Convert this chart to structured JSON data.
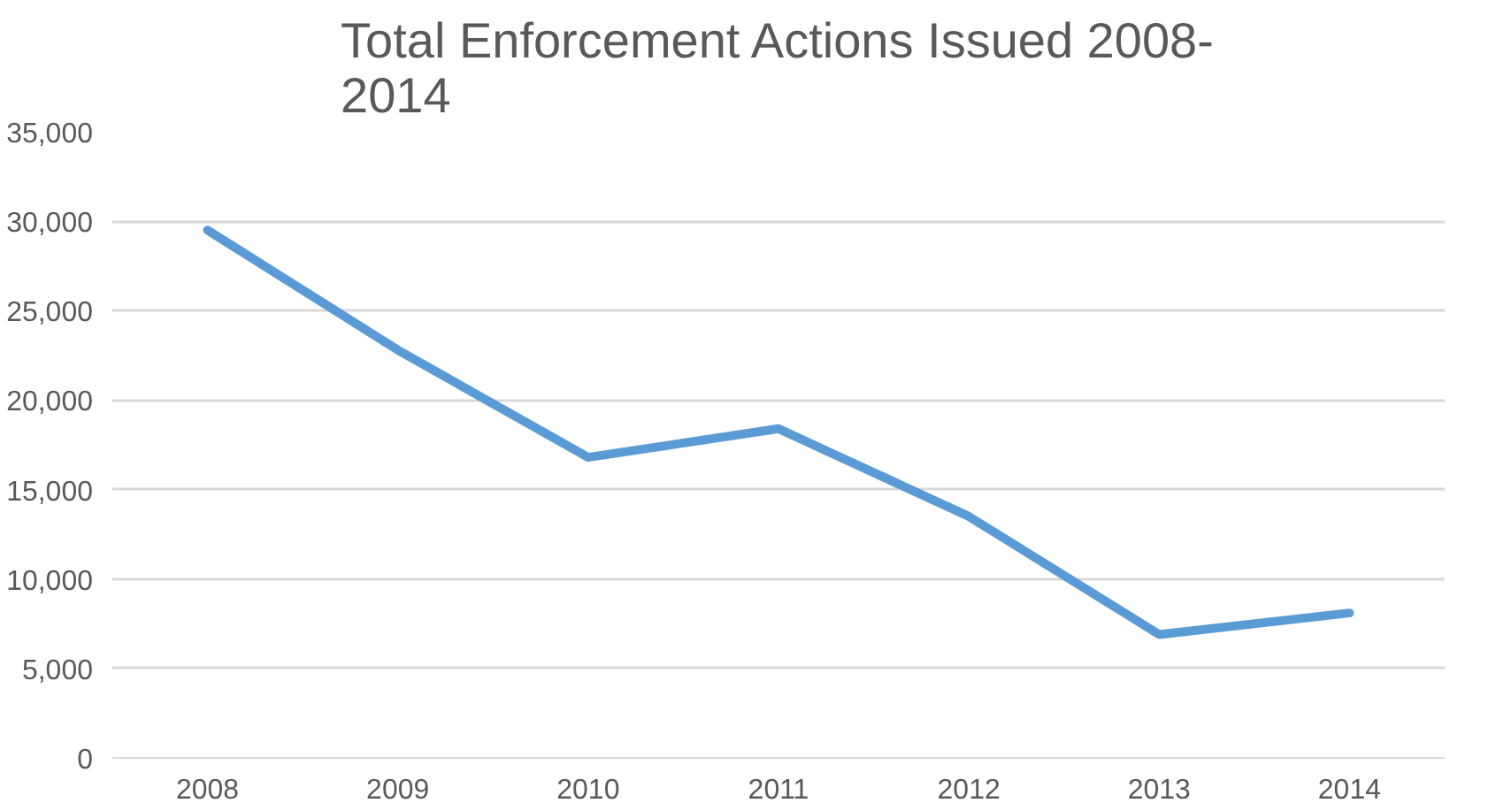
{
  "chart_data": {
    "type": "line",
    "title": "Total Enforcement Actions Issued 2008-\n2014",
    "categories": [
      "2008",
      "2009",
      "2010",
      "2011",
      "2012",
      "2013",
      "2014"
    ],
    "series": [
      {
        "color": "#5b9bd5",
        "values": [
          29500,
          22800,
          16800,
          18400,
          13500,
          6900,
          8100
        ]
      }
    ],
    "ylim": [
      0,
      35000
    ],
    "yticks": [
      {
        "value": 0,
        "label": "0"
      },
      {
        "value": 5000,
        "label": "5,000"
      },
      {
        "value": 10000,
        "label": "10,000"
      },
      {
        "value": 15000,
        "label": "15,000"
      },
      {
        "value": 20000,
        "label": "20,000"
      },
      {
        "value": 25000,
        "label": "25,000"
      },
      {
        "value": 30000,
        "label": "30,000"
      },
      {
        "value": 35000,
        "label": "35,000"
      }
    ],
    "grid": "y",
    "marker": "none",
    "line_style": "solid"
  }
}
